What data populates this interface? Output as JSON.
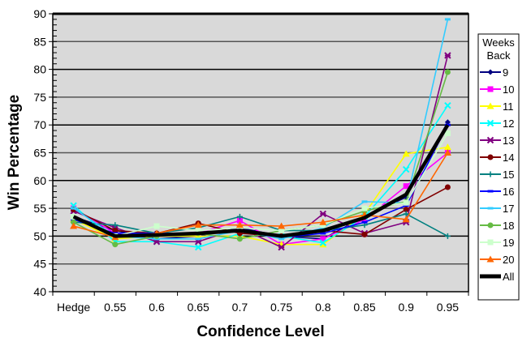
{
  "chart_data": {
    "type": "line",
    "title": "",
    "xlabel": "Confidence Level",
    "ylabel": "Win Percentage",
    "ylim": [
      40,
      90
    ],
    "yticks": [
      40,
      45,
      50,
      55,
      60,
      65,
      70,
      75,
      80,
      85,
      90
    ],
    "grid": true,
    "plot_background": "#d9d9d9",
    "legend": {
      "title_line1": "Weeks",
      "title_line2": "Back",
      "position": "right"
    },
    "categories": [
      "Hedge",
      "0.55",
      "0.6",
      "0.65",
      "0.7",
      "0.75",
      "0.8",
      "0.85",
      "0.9",
      "0.95"
    ],
    "series": [
      {
        "name": "9",
        "color": "#000080",
        "marker": "diamond",
        "values": [
          53.5,
          51.0,
          49.5,
          50.0,
          51.5,
          50.0,
          49.5,
          53.5,
          57.0,
          70.5
        ]
      },
      {
        "name": "10",
        "color": "#ff00ff",
        "marker": "square",
        "values": [
          55.0,
          50.5,
          50.0,
          50.5,
          52.8,
          48.5,
          49.5,
          53.0,
          59.0,
          65.0
        ]
      },
      {
        "name": "11",
        "color": "#ffff00",
        "marker": "triangle",
        "values": [
          53.0,
          49.5,
          50.0,
          50.0,
          50.0,
          48.5,
          48.5,
          54.0,
          64.8,
          66.0
        ]
      },
      {
        "name": "12",
        "color": "#00ffff",
        "marker": "x",
        "values": [
          55.5,
          49.0,
          49.0,
          48.0,
          50.5,
          50.0,
          48.8,
          53.5,
          62.0,
          73.5
        ]
      },
      {
        "name": "13",
        "color": "#800080",
        "marker": "star",
        "values": [
          54.5,
          51.5,
          49.0,
          49.0,
          51.5,
          48.0,
          54.0,
          50.5,
          52.5,
          82.5
        ]
      },
      {
        "name": "14",
        "color": "#800000",
        "marker": "circle",
        "values": [
          54.8,
          51.0,
          50.5,
          52.3,
          50.5,
          50.0,
          51.0,
          50.3,
          54.8,
          58.8
        ]
      },
      {
        "name": "15",
        "color": "#008080",
        "marker": "plus",
        "values": [
          52.5,
          52.0,
          50.5,
          51.5,
          53.5,
          51.0,
          51.0,
          52.0,
          54.0,
          50.0
        ]
      },
      {
        "name": "16",
        "color": "#0000ff",
        "marker": "dash",
        "values": [
          53.0,
          50.5,
          50.5,
          50.5,
          51.0,
          49.8,
          50.5,
          52.5,
          55.5,
          70.0
        ]
      },
      {
        "name": "17",
        "color": "#33ccff",
        "marker": "dash",
        "values": [
          55.0,
          50.0,
          49.5,
          49.5,
          51.0,
          49.5,
          51.5,
          56.2,
          56.0,
          89.0
        ]
      },
      {
        "name": "18",
        "color": "#66bb44",
        "marker": "circle",
        "values": [
          52.5,
          48.5,
          50.0,
          50.5,
          49.5,
          51.0,
          52.0,
          54.5,
          56.2,
          79.5
        ]
      },
      {
        "name": "19",
        "color": "#ccffcc",
        "marker": "square",
        "values": [
          53.5,
          50.0,
          51.8,
          51.0,
          51.5,
          51.0,
          52.0,
          55.0,
          56.0,
          68.5
        ]
      },
      {
        "name": "20",
        "color": "#ff6600",
        "marker": "triangle",
        "values": [
          51.8,
          49.8,
          50.5,
          52.0,
          52.0,
          51.8,
          52.5,
          53.8,
          53.0,
          65.0
        ]
      },
      {
        "name": "All",
        "color": "#000000",
        "marker": "none",
        "values": [
          53.5,
          50.0,
          50.2,
          50.5,
          51.0,
          50.0,
          51.0,
          53.3,
          57.5,
          70.0
        ],
        "linewidth": 4.5
      }
    ]
  }
}
